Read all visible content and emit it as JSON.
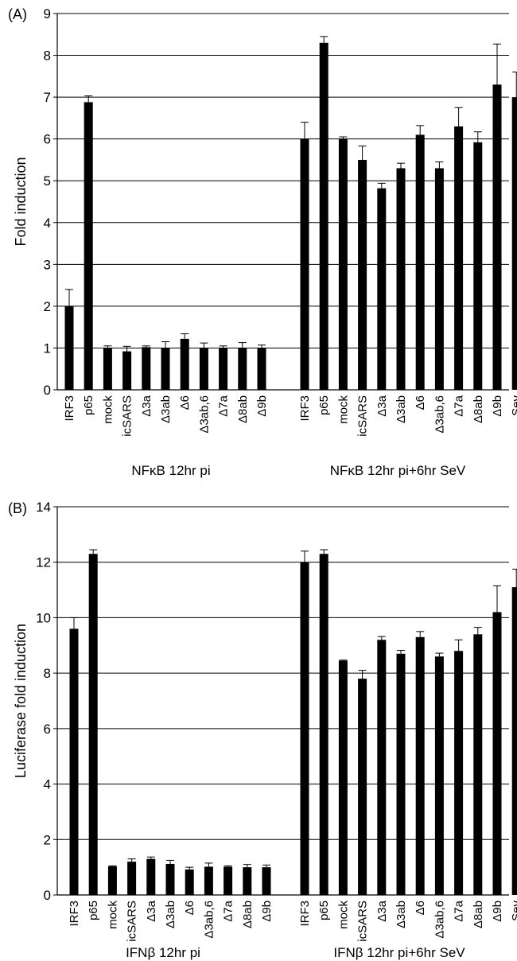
{
  "chart_data": [
    {
      "panel_label": "(A)",
      "type": "bar",
      "ylabel": "Fold induction",
      "ylim": [
        0,
        9
      ],
      "yticks": [
        "0",
        "1",
        "2",
        "3",
        "4",
        "5",
        "6",
        "7",
        "8",
        "9"
      ],
      "grid": true,
      "groups": [
        {
          "label": "NFκB 12hr pi",
          "categories": [
            "IRF3",
            "p65",
            "mock",
            "icSARS",
            "Δ3a",
            "Δ3ab",
            "Δ6",
            "Δ3ab,6",
            "Δ7a",
            "Δ8ab",
            "Δ9b"
          ],
          "values": [
            2.0,
            6.88,
            1.0,
            0.92,
            1.02,
            1.0,
            1.22,
            1.0,
            1.0,
            1.0,
            1.0
          ],
          "errors": [
            0.4,
            0.15,
            0.05,
            0.12,
            0.03,
            0.15,
            0.12,
            0.12,
            0.05,
            0.13,
            0.07
          ]
        },
        {
          "label": "NFκB 12hr pi+6hr SeV",
          "categories": [
            "IRF3",
            "p65",
            "mock",
            "icSARS",
            "Δ3a",
            "Δ3ab",
            "Δ6",
            "Δ3ab,6",
            "Δ7a",
            "Δ8ab",
            "Δ9b",
            "Sev"
          ],
          "values": [
            6.0,
            8.3,
            6.0,
            5.5,
            4.82,
            5.3,
            6.1,
            5.3,
            6.3,
            5.92,
            7.3,
            7.0
          ],
          "errors": [
            0.4,
            0.15,
            0.05,
            0.33,
            0.12,
            0.12,
            0.22,
            0.15,
            0.45,
            0.25,
            0.97,
            0.6
          ]
        }
      ]
    },
    {
      "panel_label": "(B)",
      "type": "bar",
      "ylabel": "Luciferase  fold induction",
      "ylim": [
        0,
        14
      ],
      "yticks": [
        "0",
        "2",
        "4",
        "6",
        "8",
        "10",
        "12",
        "14"
      ],
      "grid": true,
      "groups": [
        {
          "label": "IFNβ 12hr pi",
          "categories": [
            "IRF3",
            "p65",
            "mock",
            "icSARS",
            "Δ3a",
            "Δ3ab",
            "Δ6",
            "Δ3ab,6",
            "Δ7a",
            "Δ8ab",
            "Δ9b"
          ],
          "values": [
            9.6,
            12.3,
            1.03,
            1.2,
            1.3,
            1.12,
            0.92,
            1.02,
            1.02,
            1.0,
            1.0
          ],
          "errors": [
            0.4,
            0.15,
            0.02,
            0.1,
            0.07,
            0.13,
            0.08,
            0.13,
            0.03,
            0.1,
            0.08
          ]
        },
        {
          "label": "IFNβ 12hr pi+6hr SeV",
          "categories": [
            "IRF3",
            "p65",
            "mock",
            "icSARS",
            "Δ3a",
            "Δ3ab",
            "Δ6",
            "Δ3ab,6",
            "Δ7a",
            "Δ8ab",
            "Δ9b",
            "Sev"
          ],
          "values": [
            12.0,
            12.3,
            8.45,
            7.8,
            9.2,
            8.7,
            9.3,
            8.6,
            8.8,
            9.4,
            10.2,
            11.1
          ],
          "errors": [
            0.4,
            0.15,
            0.02,
            0.3,
            0.12,
            0.12,
            0.2,
            0.12,
            0.4,
            0.25,
            0.95,
            0.65
          ]
        }
      ]
    }
  ]
}
